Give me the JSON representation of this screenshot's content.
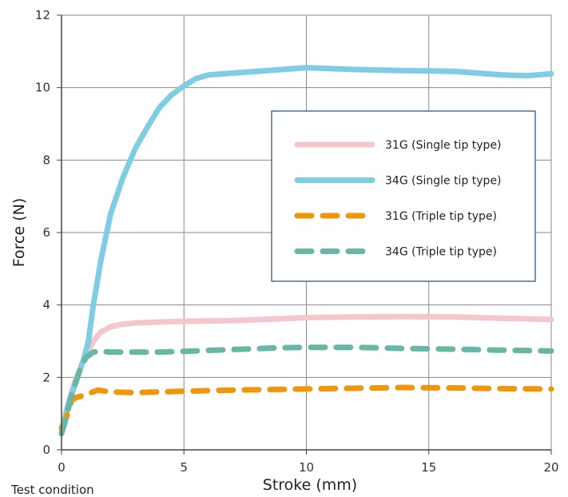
{
  "chart_data": {
    "type": "line",
    "title": "",
    "xlabel": "Stroke (mm)",
    "ylabel": "Force (N)",
    "xlim": [
      0,
      20
    ],
    "ylim": [
      0,
      12
    ],
    "xticks": [
      "0",
      "5",
      "10",
      "15",
      "20"
    ],
    "yticks": [
      "0",
      "2",
      "4",
      "6",
      "8",
      "10",
      "12"
    ],
    "grid": true,
    "legend_position": "right",
    "series": [
      {
        "name": "31G (Single tip type)",
        "color": "#f5c6cc",
        "style": "solid",
        "points": [
          [
            0,
            0.5
          ],
          [
            0.2,
            1.1
          ],
          [
            0.5,
            1.8
          ],
          [
            0.8,
            2.3
          ],
          [
            1.0,
            2.6
          ],
          [
            1.3,
            3.0
          ],
          [
            1.6,
            3.25
          ],
          [
            2.0,
            3.4
          ],
          [
            2.5,
            3.47
          ],
          [
            3,
            3.5
          ],
          [
            4,
            3.53
          ],
          [
            5,
            3.55
          ],
          [
            7,
            3.57
          ],
          [
            9,
            3.62
          ],
          [
            10,
            3.65
          ],
          [
            12,
            3.67
          ],
          [
            14,
            3.68
          ],
          [
            16,
            3.67
          ],
          [
            18,
            3.63
          ],
          [
            20,
            3.6
          ]
        ]
      },
      {
        "name": "34G (Single tip type)",
        "color": "#7ecde3",
        "style": "solid",
        "points": [
          [
            0,
            0.45
          ],
          [
            0.3,
            1.3
          ],
          [
            0.6,
            1.9
          ],
          [
            0.9,
            2.5
          ],
          [
            1.1,
            3.0
          ],
          [
            1.3,
            4.0
          ],
          [
            1.6,
            5.2
          ],
          [
            2.0,
            6.5
          ],
          [
            2.5,
            7.5
          ],
          [
            3,
            8.3
          ],
          [
            3.5,
            8.9
          ],
          [
            4,
            9.45
          ],
          [
            4.5,
            9.8
          ],
          [
            5,
            10.05
          ],
          [
            5.5,
            10.25
          ],
          [
            6,
            10.35
          ],
          [
            7,
            10.4
          ],
          [
            8,
            10.45
          ],
          [
            9,
            10.5
          ],
          [
            10,
            10.55
          ],
          [
            12,
            10.5
          ],
          [
            14,
            10.47
          ],
          [
            16,
            10.45
          ],
          [
            18,
            10.35
          ],
          [
            19,
            10.33
          ],
          [
            20,
            10.38
          ]
        ]
      },
      {
        "name": "31G (Triple tip type)",
        "color": "#f0960a",
        "style": "dashed",
        "points": [
          [
            0,
            0.6
          ],
          [
            0.2,
            0.9
          ],
          [
            0.4,
            1.35
          ],
          [
            0.6,
            1.45
          ],
          [
            0.9,
            1.5
          ],
          [
            1.2,
            1.58
          ],
          [
            1.5,
            1.65
          ],
          [
            2,
            1.6
          ],
          [
            3,
            1.58
          ],
          [
            4,
            1.6
          ],
          [
            5,
            1.62
          ],
          [
            7,
            1.65
          ],
          [
            9,
            1.67
          ],
          [
            10,
            1.68
          ],
          [
            12,
            1.7
          ],
          [
            14,
            1.72
          ],
          [
            16,
            1.71
          ],
          [
            18,
            1.69
          ],
          [
            20,
            1.68
          ]
        ]
      },
      {
        "name": "34G (Triple tip type)",
        "color": "#68b6a4",
        "style": "dashed",
        "points": [
          [
            0,
            0.45
          ],
          [
            0.2,
            0.9
          ],
          [
            0.4,
            1.5
          ],
          [
            0.6,
            1.9
          ],
          [
            0.8,
            2.3
          ],
          [
            1.0,
            2.55
          ],
          [
            1.3,
            2.7
          ],
          [
            1.6,
            2.72
          ],
          [
            2,
            2.7
          ],
          [
            3,
            2.7
          ],
          [
            4,
            2.7
          ],
          [
            5,
            2.72
          ],
          [
            7,
            2.77
          ],
          [
            9,
            2.82
          ],
          [
            10,
            2.83
          ],
          [
            12,
            2.83
          ],
          [
            14,
            2.8
          ],
          [
            16,
            2.78
          ],
          [
            18,
            2.75
          ],
          [
            20,
            2.73
          ]
        ]
      }
    ]
  },
  "footnote": "Test condition"
}
